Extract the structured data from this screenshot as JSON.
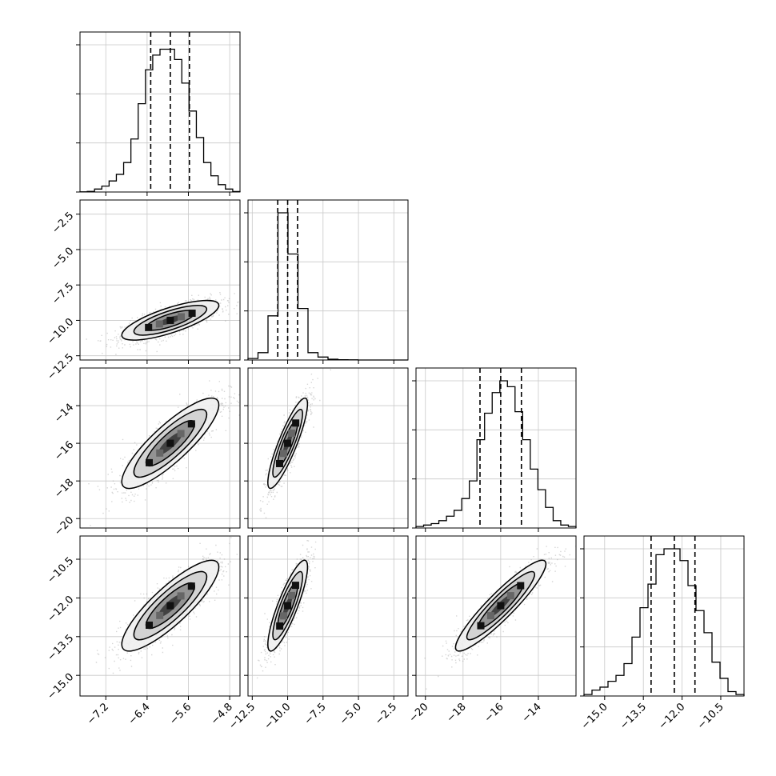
{
  "chart_data": {
    "type": "corner",
    "title": "",
    "grid": true,
    "quantile_lines": "dashed",
    "params": [
      {
        "range": [
          -7.7,
          -4.6
        ],
        "ticks": [
          -7.2,
          -6.4,
          -5.6,
          -4.8
        ],
        "tick_labels": [
          "−7.2",
          "−6.4",
          "−5.6",
          "−4.8"
        ],
        "label": "",
        "quantiles": [
          -6.33,
          -5.95,
          -5.58
        ],
        "hist": [
          0.001,
          0.004,
          0.02,
          0.04,
          0.075,
          0.12,
          0.2,
          0.36,
          0.6,
          0.83,
          0.93,
          0.97,
          0.97,
          0.9,
          0.74,
          0.55,
          0.37,
          0.2,
          0.11,
          0.05,
          0.02,
          0.003
        ]
      },
      {
        "range": [
          -12.8,
          -1.5
        ],
        "ticks": [
          -12.5,
          -10.0,
          -7.5,
          -5.0,
          -2.5
        ],
        "tick_labels": [
          "−12.5",
          "−10.0",
          "−7.5",
          "−5.0",
          "−2.5"
        ],
        "label": "",
        "quantiles": [
          -10.7,
          -10.0,
          -9.3
        ],
        "hist": [
          0.01,
          0.05,
          0.3,
          1.0,
          0.72,
          0.35,
          0.05,
          0.02,
          0.005,
          0.002,
          0.001,
          0.0,
          0.0,
          0.0,
          0.0,
          0.0
        ]
      },
      {
        "range": [
          -20.5,
          -12.0
        ],
        "ticks": [
          -20,
          -18,
          -16,
          -14
        ],
        "tick_labels": [
          "−20",
          "−18",
          "−16",
          "−14"
        ],
        "label": "",
        "quantiles": [
          -17.1,
          -16.0,
          -14.9
        ],
        "hist": [
          0.01,
          0.02,
          0.03,
          0.05,
          0.08,
          0.12,
          0.2,
          0.32,
          0.6,
          0.78,
          0.92,
          1.0,
          0.96,
          0.79,
          0.6,
          0.4,
          0.26,
          0.14,
          0.05,
          0.02,
          0.01
        ]
      },
      {
        "range": [
          -15.8,
          -9.6
        ],
        "ticks": [
          -15.0,
          -13.5,
          -12.0,
          -10.5
        ],
        "tick_labels": [
          "−15.0",
          "−13.5",
          "−12.0",
          "−10.5"
        ],
        "label": "",
        "quantiles": [
          -13.2,
          -12.3,
          -11.5
        ],
        "hist": [
          0.01,
          0.04,
          0.06,
          0.1,
          0.14,
          0.22,
          0.4,
          0.6,
          0.76,
          0.96,
          1.0,
          1.0,
          0.92,
          0.75,
          0.58,
          0.43,
          0.23,
          0.12,
          0.03,
          0.01
        ]
      }
    ],
    "pairs": [
      {
        "row": 1,
        "col": 0,
        "mean": [
          -5.95,
          -10.0
        ],
        "sigma": [
          0.47,
          0.7
        ],
        "rho": 0.75
      },
      {
        "row": 2,
        "col": 0,
        "mean": [
          -5.95,
          -16.0
        ],
        "sigma": [
          0.47,
          1.2
        ],
        "rho": 0.85
      },
      {
        "row": 2,
        "col": 1,
        "mean": [
          -10.0,
          -16.0
        ],
        "sigma": [
          0.7,
          1.2
        ],
        "rho": 0.87
      },
      {
        "row": 3,
        "col": 0,
        "mean": [
          -5.95,
          -12.3
        ],
        "sigma": [
          0.47,
          0.88
        ],
        "rho": 0.85
      },
      {
        "row": 3,
        "col": 1,
        "mean": [
          -10.0,
          -12.3
        ],
        "sigma": [
          0.7,
          0.88
        ],
        "rho": 0.85
      },
      {
        "row": 3,
        "col": 2,
        "mean": [
          -16.0,
          -12.3
        ],
        "sigma": [
          1.2,
          0.88
        ],
        "rho": 0.92
      }
    ]
  }
}
